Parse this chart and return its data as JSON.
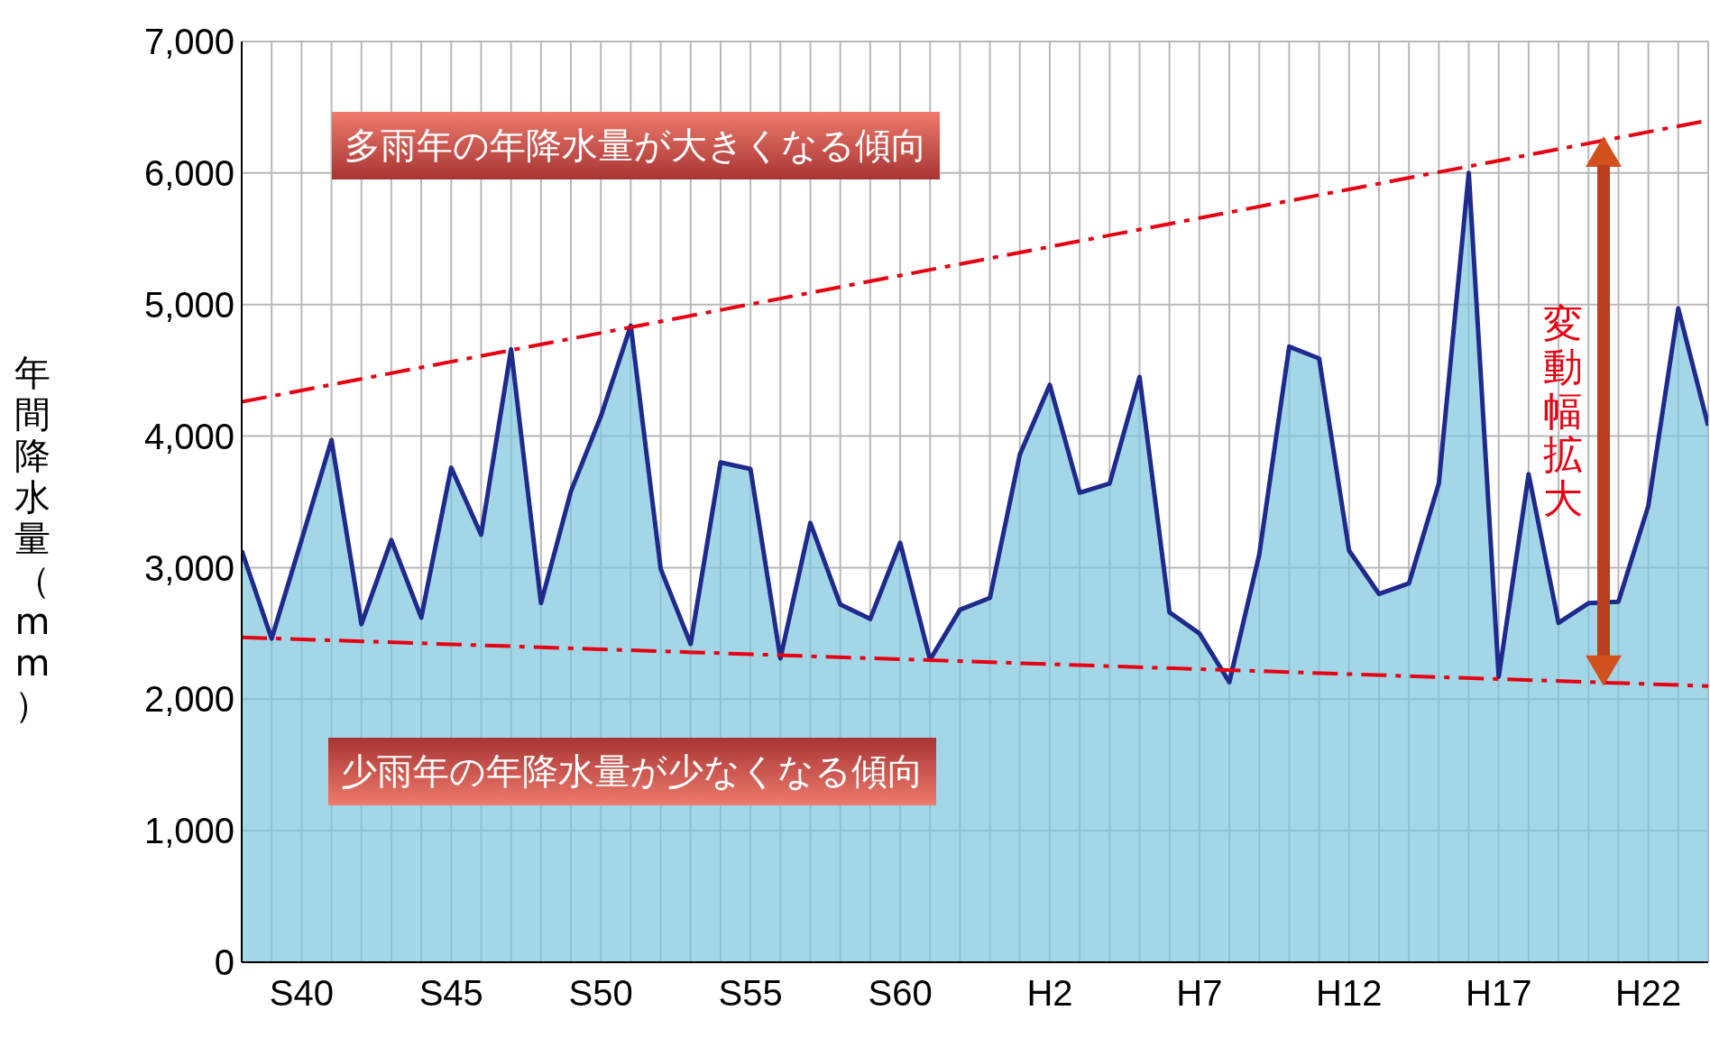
{
  "chart_data": {
    "type": "area",
    "ylabel": "年間降水量（mm）",
    "categories": [
      null,
      null,
      "S40",
      null,
      null,
      null,
      null,
      "S45",
      null,
      null,
      null,
      null,
      "S50",
      null,
      null,
      null,
      null,
      "S55",
      null,
      null,
      null,
      null,
      "S60",
      null,
      null,
      null,
      null,
      "H2",
      null,
      null,
      null,
      null,
      "H7",
      null,
      null,
      null,
      null,
      "H12",
      null,
      null,
      null,
      null,
      "H17",
      null,
      null,
      null,
      null,
      "H22",
      null,
      null
    ],
    "series": [
      {
        "color": "#1f2a8c",
        "values": [
          3130,
          2460,
          3210,
          3970,
          2570,
          3210,
          2620,
          3760,
          3250,
          4660,
          2730,
          3580,
          4150,
          4840,
          2990,
          2420,
          3800,
          3750,
          2310,
          3340,
          2720,
          2610,
          3190,
          2300,
          2680,
          2770,
          3860,
          4390,
          3570,
          3640,
          4450,
          2660,
          2500,
          2130,
          3100,
          4680,
          4590,
          3130,
          2800,
          2880,
          3640,
          6000,
          2170,
          3710,
          2580,
          2730,
          2740,
          3470,
          4970,
          4080
        ]
      },
      {
        "type": "line",
        "color": "#e60012",
        "line_style": "dashed",
        "values": [
          4260,
          null,
          null,
          null,
          null,
          null,
          null,
          null,
          null,
          null,
          null,
          null,
          null,
          null,
          null,
          null,
          null,
          null,
          null,
          null,
          null,
          null,
          null,
          null,
          null,
          null,
          null,
          null,
          null,
          null,
          null,
          null,
          null,
          null,
          null,
          null,
          null,
          null,
          null,
          null,
          null,
          null,
          null,
          null,
          null,
          null,
          null,
          null,
          null,
          6400
        ]
      },
      {
        "type": "line",
        "color": "#e60012",
        "line_style": "dashed",
        "values": [
          2470,
          null,
          null,
          null,
          null,
          null,
          null,
          null,
          null,
          null,
          null,
          null,
          null,
          null,
          null,
          null,
          null,
          null,
          null,
          null,
          null,
          null,
          null,
          null,
          null,
          null,
          null,
          null,
          null,
          null,
          null,
          null,
          null,
          null,
          null,
          null,
          null,
          null,
          null,
          null,
          null,
          null,
          null,
          null,
          null,
          null,
          null,
          null,
          null,
          2100
        ]
      }
    ],
    "ylim": [
      0,
      7000
    ],
    "yticks": [
      0,
      {
        "value": 1000,
        "label": "1,000"
      },
      {
        "value": 2000,
        "label": "2,000"
      },
      {
        "value": 3000,
        "label": "3,000"
      },
      {
        "value": 4000,
        "label": "4,000"
      },
      {
        "value": 5000,
        "label": "5,000"
      },
      {
        "value": 6000,
        "label": "6,000"
      },
      {
        "value": 7000,
        "label": "7,000"
      }
    ],
    "grid": true,
    "annotations": [
      "多雨年の年降水量が大きくなる傾向",
      "少雨年の年降水量が少なくなる傾向",
      "変動幅拡大"
    ]
  }
}
